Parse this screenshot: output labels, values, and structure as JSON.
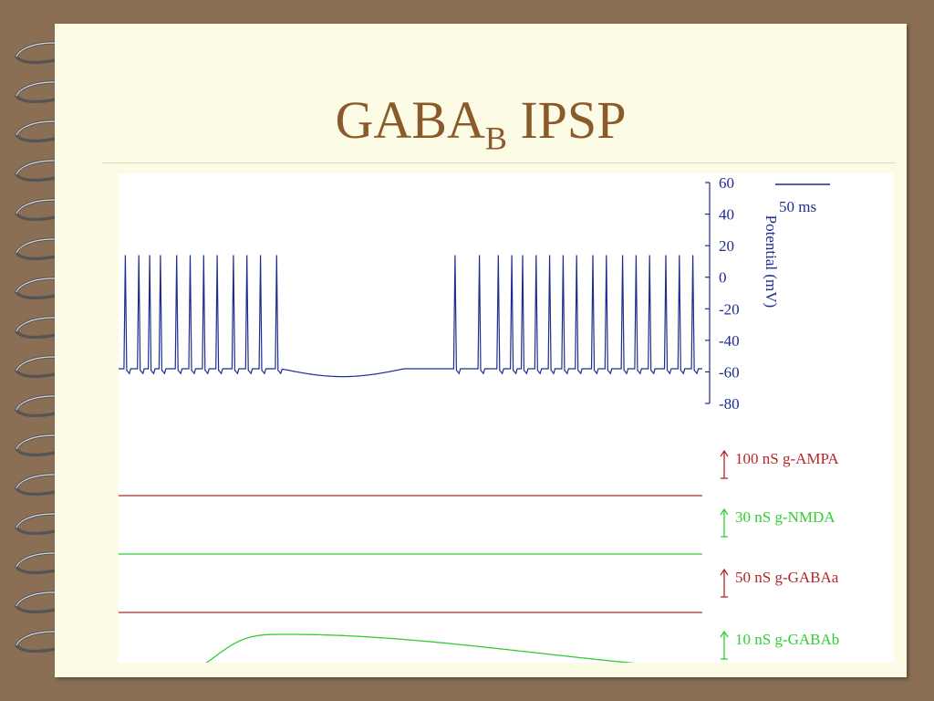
{
  "slide": {
    "title_main": "GABA",
    "title_sub": "B",
    "title_tail": " IPSP"
  },
  "colors": {
    "background": "#8a6f55",
    "page": "#fbfbe6",
    "title": "#8b5a2b",
    "voltage": "#1f2d8f",
    "red_trace": "#b3262b",
    "green_trace": "#33cc33"
  },
  "chart_data": {
    "type": "line",
    "voltage_axis": {
      "ylabel": "Potential (mV)",
      "ylim": [
        -80,
        60
      ],
      "ticks": [
        "60",
        "40",
        "20",
        "0",
        "-20",
        "-40",
        "-60",
        "-80"
      ]
    },
    "scale_bar_label": "50 ms",
    "voltage_trace": {
      "baseline_mv": -58,
      "spike_peak_mv": 14,
      "ipsp_min_mv": -63,
      "spike_times_ms_first_burst": [
        3,
        8,
        12,
        16,
        22,
        27,
        32,
        37,
        43,
        48,
        53,
        59
      ],
      "spike_times_ms_second_burst": [
        125,
        134,
        141,
        146,
        150,
        155,
        160,
        165,
        170,
        176,
        181,
        187,
        192,
        197,
        203,
        208,
        213
      ]
    },
    "conductance_traces": [
      {
        "name": "100 nS g-AMPA",
        "color": "#b3262b",
        "shape": "flat"
      },
      {
        "name": "30 nS g-NMDA",
        "color": "#33cc33",
        "shape": "flat"
      },
      {
        "name": "50 nS g-GABAa",
        "color": "#b3262b",
        "shape": "flat"
      },
      {
        "name": "10 nS g-GABAb",
        "color": "#33cc33",
        "shape": "gabab"
      }
    ]
  }
}
